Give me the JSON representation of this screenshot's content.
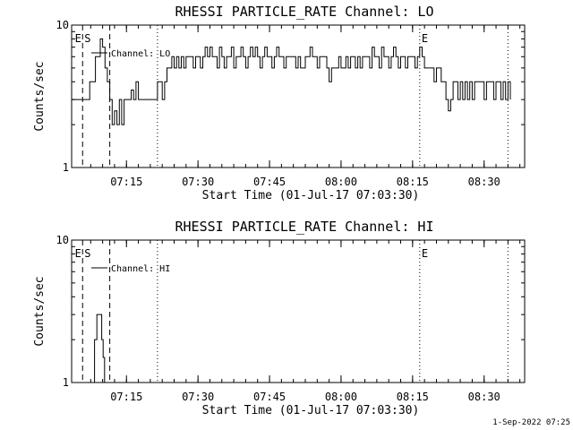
{
  "footer": {
    "timestamp": "1-Sep-2022 07:25"
  },
  "chart_data": [
    {
      "type": "line",
      "title": "RHESSI PARTICLE_RATE Channel: LO",
      "xlabel": "Start Time (01-Jul-17 07:03:30)",
      "ylabel": "Counts/sec",
      "y_scale": "log",
      "ylim": [
        1,
        10
      ],
      "y_ticks": [
        "1",
        "10"
      ],
      "xlim_minutes": [
        0,
        95
      ],
      "x_ticks": [
        {
          "label": "07:15",
          "minute": 11.5
        },
        {
          "label": "07:30",
          "minute": 26.5
        },
        {
          "label": "07:45",
          "minute": 41.5
        },
        {
          "label": "08:00",
          "minute": 56.5
        },
        {
          "label": "08:15",
          "minute": 71.5
        },
        {
          "label": "08:30",
          "minute": 86.5
        }
      ],
      "legend": "Channel: LO",
      "markers": [
        {
          "label": "E",
          "minute": 0.3,
          "style": "none"
        },
        {
          "label": "S",
          "minute": 2.3,
          "style": "dashed"
        },
        {
          "label": "",
          "minute": 8.0,
          "style": "dashed"
        },
        {
          "label": "",
          "minute": 18.0,
          "style": "dotted"
        },
        {
          "label": "E",
          "minute": 73.0,
          "style": "dotted"
        },
        {
          "label": "",
          "minute": 91.5,
          "style": "dotted"
        }
      ],
      "series": [
        {
          "name": "Channel: LO",
          "x": [
            0,
            3.5,
            3.8,
            5,
            6,
            6.5,
            7,
            7.5,
            8,
            8.5,
            9,
            9.5,
            10,
            10.5,
            11,
            11.5,
            12,
            12.5,
            13,
            13.5,
            14,
            14.5,
            15,
            17.5,
            18,
            18.5,
            19,
            19.5,
            20,
            20.5,
            21,
            21.5,
            22,
            22.5,
            23,
            23.5,
            24,
            24.5,
            25,
            25.5,
            26,
            26.5,
            27,
            27.5,
            28,
            28.5,
            29,
            29.5,
            30,
            30.5,
            31,
            31.5,
            32,
            32.5,
            33,
            33.5,
            34,
            34.5,
            35,
            35.5,
            36,
            36.5,
            37,
            37.5,
            38,
            38.5,
            39,
            39.5,
            40,
            40.5,
            41,
            41.5,
            42,
            42.5,
            43,
            43.5,
            44,
            44.5,
            45,
            45.5,
            46,
            46.5,
            47,
            47.5,
            48,
            48.5,
            49,
            49.5,
            50,
            50.5,
            51,
            51.5,
            52,
            52.5,
            53,
            53.5,
            54,
            54.5,
            55,
            55.5,
            56,
            56.5,
            57,
            57.5,
            58,
            58.5,
            59,
            59.5,
            60,
            60.5,
            61,
            61.5,
            62,
            62.5,
            63,
            63.5,
            64,
            64.5,
            65,
            65.5,
            66,
            66.5,
            67,
            67.5,
            68,
            68.5,
            69,
            69.5,
            70,
            70.5,
            71,
            71.5,
            72,
            72.5,
            73,
            73.5,
            74,
            74.5,
            75,
            75.5,
            76,
            76.5,
            77,
            77.5,
            78,
            78.5,
            79,
            79.5,
            80,
            80.5,
            81,
            81.5,
            82,
            82.5,
            83,
            83.5,
            84,
            84.5,
            85,
            85.5,
            86,
            86.5,
            87,
            87.5,
            88,
            88.5,
            89,
            89.5,
            90,
            90.5,
            91,
            91.5,
            92
          ],
          "y": [
            3,
            3,
            4,
            6,
            8,
            7,
            5,
            4,
            3,
            2,
            2.5,
            2,
            3,
            2,
            3,
            3,
            3,
            3.5,
            3,
            4,
            3,
            3,
            3,
            3,
            4,
            4,
            3,
            4,
            5,
            5,
            6,
            5,
            6,
            5,
            6,
            5,
            6,
            6,
            6,
            5,
            6,
            6,
            5,
            6,
            7,
            6,
            7,
            6,
            6,
            5,
            7,
            6,
            5,
            6,
            6,
            7,
            5,
            6,
            6,
            7,
            6,
            5,
            6,
            7,
            6,
            7,
            6,
            5,
            6,
            7,
            6,
            6,
            5,
            6,
            7,
            6,
            6,
            5,
            6,
            6,
            6,
            6,
            5,
            6,
            5,
            5,
            6,
            6,
            7,
            6,
            6,
            5,
            6,
            6,
            6,
            5,
            4,
            5,
            5,
            5,
            6,
            5,
            5,
            6,
            5,
            6,
            6,
            5,
            6,
            5,
            6,
            6,
            6,
            5,
            7,
            6,
            6,
            5,
            7,
            6,
            6,
            5,
            6,
            7,
            6,
            5,
            6,
            6,
            5,
            6,
            6,
            6,
            5,
            6,
            7,
            6,
            5,
            5,
            5,
            5,
            4,
            5,
            5,
            4,
            4,
            3,
            2.5,
            3,
            4,
            4,
            3,
            4,
            3,
            4,
            3,
            4,
            3,
            4,
            4,
            4,
            4,
            3,
            4,
            4,
            4,
            3,
            4,
            4,
            3,
            4,
            3,
            4,
            3
          ]
        }
      ]
    },
    {
      "type": "line",
      "title": "RHESSI PARTICLE_RATE Channel: HI",
      "xlabel": "Start Time (01-Jul-17 07:03:30)",
      "ylabel": "Counts/sec",
      "y_scale": "log",
      "ylim": [
        1,
        10
      ],
      "y_ticks": [
        "1",
        "10"
      ],
      "xlim_minutes": [
        0,
        95
      ],
      "x_ticks": [
        {
          "label": "07:15",
          "minute": 11.5
        },
        {
          "label": "07:30",
          "minute": 26.5
        },
        {
          "label": "07:45",
          "minute": 41.5
        },
        {
          "label": "08:00",
          "minute": 56.5
        },
        {
          "label": "08:15",
          "minute": 71.5
        },
        {
          "label": "08:30",
          "minute": 86.5
        }
      ],
      "legend": "Channel: HI",
      "markers": [
        {
          "label": "E",
          "minute": 0.3,
          "style": "none"
        },
        {
          "label": "S",
          "minute": 2.3,
          "style": "dashed"
        },
        {
          "label": "",
          "minute": 8.0,
          "style": "dashed"
        },
        {
          "label": "",
          "minute": 18.0,
          "style": "dotted"
        },
        {
          "label": "E",
          "minute": 73.0,
          "style": "dotted"
        },
        {
          "label": "",
          "minute": 91.5,
          "style": "dotted"
        }
      ],
      "series": [
        {
          "name": "Channel: HI",
          "x": [
            4.2,
            4.8,
            5.3,
            5.9,
            6.3,
            6.6,
            6.9
          ],
          "y": [
            1,
            2,
            3,
            3,
            2,
            1.5,
            1
          ]
        }
      ]
    }
  ]
}
